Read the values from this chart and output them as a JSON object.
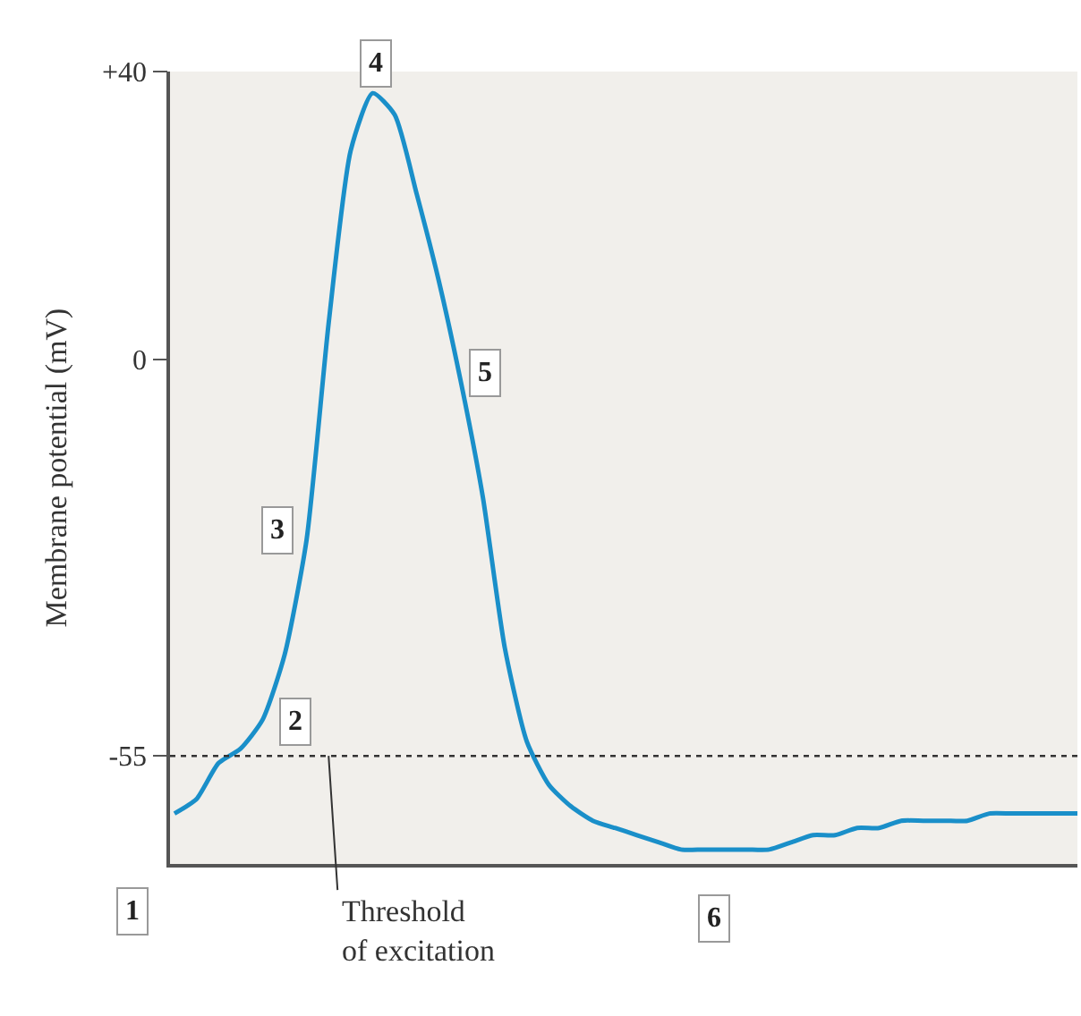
{
  "chart_data": {
    "type": "line",
    "ylabel": "Membrane potential (mV)",
    "categories": [
      null,
      null,
      null,
      null,
      null,
      null,
      null,
      null,
      null,
      null,
      null,
      null,
      null,
      null,
      null,
      null,
      null,
      null,
      null,
      null,
      null,
      null,
      null,
      null,
      null,
      null,
      null,
      null,
      null,
      null,
      null,
      null,
      null,
      null,
      null,
      null,
      null,
      null,
      null,
      null,
      null,
      null
    ],
    "series": [
      {
        "color": "#1a8fc9",
        "values": [
          -63,
          -61,
          -56,
          -54,
          -50,
          -41,
          -25,
          5,
          29,
          37,
          34,
          23,
          11,
          -3,
          -19,
          -40,
          -53,
          -59,
          -62,
          -64,
          -65,
          -66,
          -67,
          -68,
          -68,
          -68,
          -68,
          -68,
          -67,
          -66,
          -66,
          -65,
          -65,
          -64,
          -64,
          -64,
          -64,
          -63,
          -63,
          -63,
          -63,
          -63
        ]
      }
    ],
    "ylim": [
      -70,
      40
    ],
    "yticks": [
      {
        "value": 40,
        "label": "+40"
      },
      0,
      -55
    ],
    "tick_labels": "y",
    "grid": false,
    "marker": "none",
    "line_style": "solid",
    "ref_lines": [
      {
        "axis": "y",
        "value": -55,
        "label": "Threshold\nof excitation",
        "color": "#333333",
        "line_style": "dotted"
      }
    ],
    "annotations": [
      "1",
      "2",
      "3",
      "4",
      "5",
      "6"
    ]
  }
}
